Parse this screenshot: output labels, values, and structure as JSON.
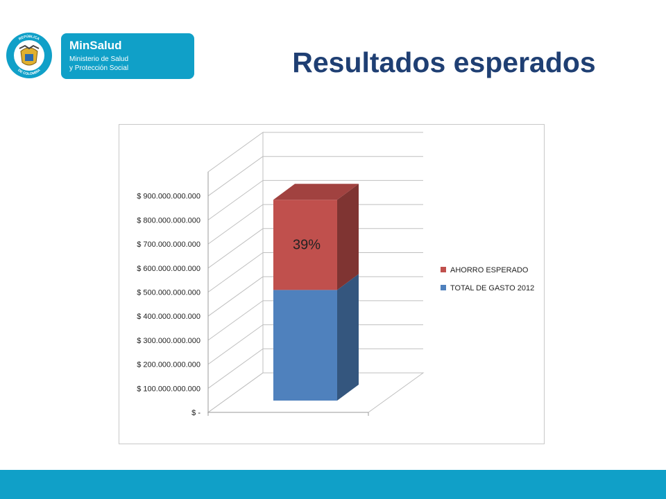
{
  "header": {
    "seal_text_top": "REPÚBLICA",
    "seal_text_bottom": "DE COLOMBIA",
    "brand_name": "MinSalud",
    "brand_line1": "Ministerio de Salud",
    "brand_line2": "y Protección Social",
    "title": "Resultados esperados"
  },
  "colors": {
    "accent": "#10a0c8",
    "title": "#1f3f73",
    "series_total": "#4f81bd",
    "series_ahorro": "#c0504d"
  },
  "chart_data": {
    "type": "bar",
    "stacked": true,
    "three_d": true,
    "categories": [
      ""
    ],
    "series": [
      {
        "name": "TOTAL DE GASTO 2012",
        "values": [
          460000000000
        ],
        "color": "#4f81bd"
      },
      {
        "name": "AHORRO ESPERADO",
        "values": [
          375000000000
        ],
        "color": "#c0504d"
      }
    ],
    "data_labels": [
      {
        "series": "AHORRO ESPERADO",
        "text": "39%"
      }
    ],
    "y_ticks": [
      "$ -",
      "$ 100.000.000.000",
      "$ 200.000.000.000",
      "$ 300.000.000.000",
      "$ 400.000.000.000",
      "$ 500.000.000.000",
      "$ 600.000.000.000",
      "$ 700.000.000.000",
      "$ 800.000.000.000",
      "$ 900.000.000.000"
    ],
    "ylim": [
      0,
      1000000000000
    ],
    "grid": true,
    "legend": "right"
  }
}
